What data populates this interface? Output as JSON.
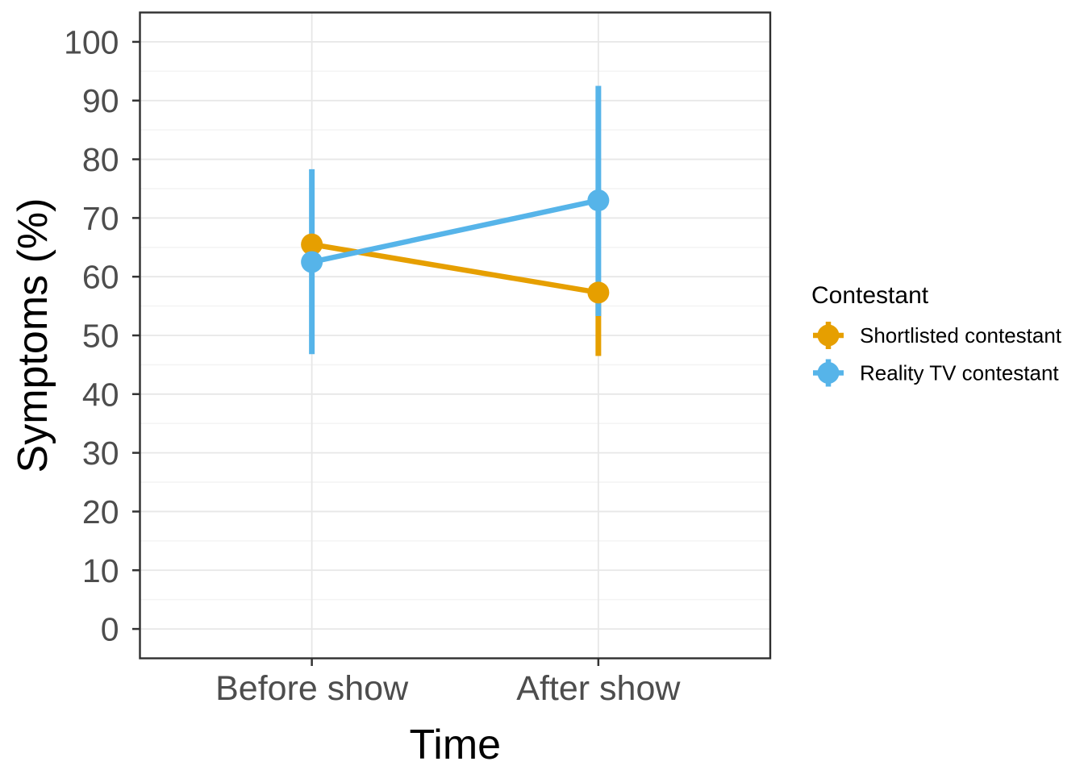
{
  "chart_data": {
    "type": "line",
    "categories": [
      "Before show",
      "After show"
    ],
    "series": [
      {
        "name": "Shortlisted contestant",
        "color": "#E69F00",
        "values": [
          65.5,
          57.3
        ],
        "ci_lower": [
          null,
          46.5
        ],
        "ci_upper": [
          null,
          null
        ]
      },
      {
        "name": "Reality TV contestant",
        "color": "#56B4E9",
        "values": [
          62.5,
          73.0
        ],
        "ci_lower": [
          46.8,
          53.3
        ],
        "ci_upper": [
          78.3,
          92.5
        ]
      }
    ],
    "title": "",
    "xlabel": "Time",
    "ylabel": "Symptoms (%)",
    "yticks": [
      0,
      10,
      20,
      30,
      40,
      50,
      60,
      70,
      80,
      90,
      100
    ],
    "y_minor_ticks": [
      5,
      15,
      25,
      35,
      45,
      55,
      65,
      75,
      85,
      95
    ],
    "y_axis_range": [
      -5,
      105
    ],
    "grid": "horizontal major+minor, vertical major at categories",
    "legend_position": "right",
    "legend_title": "Contestant"
  },
  "colors": {
    "background": "#ffffff",
    "panel_border": "#2f2f2f",
    "grid_major": "#e7e7e7",
    "grid_minor": "#f4f4f4",
    "tick_mark": "#333333",
    "axis_text": "#4d4d4d",
    "title_text": "#000000",
    "legend_text": "#000000"
  }
}
